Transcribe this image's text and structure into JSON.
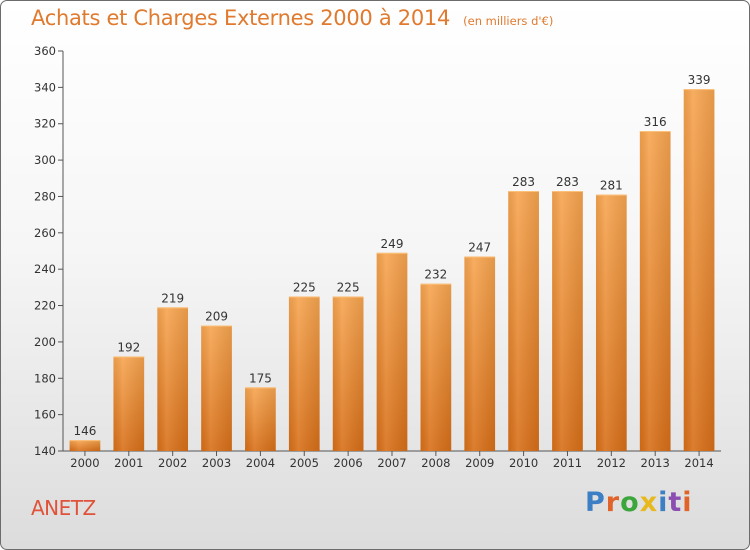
{
  "title": "Achats et Charges Externes 2000 à 2014",
  "unit": "(en milliers d'€)",
  "commune": "ANETZ",
  "logo": {
    "text": "Proxiti",
    "colors": [
      "#3d7fc4",
      "#e0632a",
      "#3aa63c",
      "#e8b81f",
      "#3d7fc4",
      "#8a4fb0",
      "#e0632a"
    ]
  },
  "chart_data": {
    "type": "bar",
    "categories": [
      "2000",
      "2001",
      "2002",
      "2003",
      "2004",
      "2005",
      "2006",
      "2007",
      "2008",
      "2009",
      "2010",
      "2011",
      "2012",
      "2013",
      "2014"
    ],
    "values": [
      146,
      192,
      219,
      209,
      175,
      225,
      225,
      249,
      232,
      247,
      283,
      283,
      281,
      316,
      339
    ],
    "ylim": [
      140,
      360
    ],
    "yticks": [
      140,
      160,
      180,
      200,
      220,
      240,
      260,
      280,
      300,
      320,
      340,
      360
    ],
    "xlabel": "",
    "ylabel": "",
    "grid": false,
    "data_labels": true,
    "bar_color": "#f0922e"
  }
}
